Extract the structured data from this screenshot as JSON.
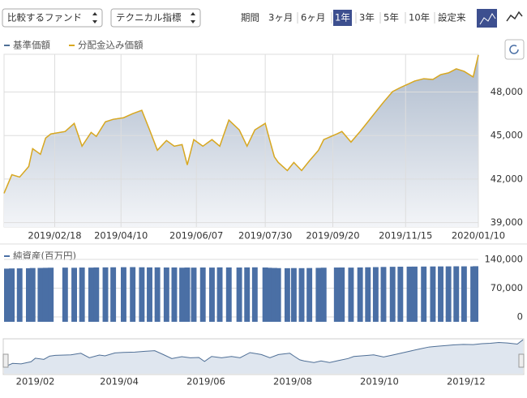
{
  "controls": {
    "compare_select": "比較するファンド",
    "indicator_select": "テクニカル指標",
    "period_label": "期間",
    "periods": [
      "3ヶ月",
      "6ヶ月",
      "1年",
      "3年",
      "5年",
      "10年",
      "設定来"
    ],
    "selected_period": "1年"
  },
  "chart_data": [
    {
      "type": "line",
      "x": [
        "2019/01/10",
        "2019/01/16",
        "2019/01/22",
        "2019/01/29",
        "2019/02/01",
        "2019/02/07",
        "2019/02/11",
        "2019/02/15",
        "2019/02/26",
        "2019/03/05",
        "2019/03/11",
        "2019/03/18",
        "2019/03/22",
        "2019/03/29",
        "2019/04/04",
        "2019/04/12",
        "2019/04/19",
        "2019/04/26",
        "2019/05/02",
        "2019/05/08",
        "2019/05/15",
        "2019/05/21",
        "2019/05/27",
        "2019/05/31",
        "2019/06/05",
        "2019/06/12",
        "2019/06/19",
        "2019/06/25",
        "2019/07/02",
        "2019/07/10",
        "2019/07/16",
        "2019/07/22",
        "2019/07/30",
        "2019/08/02",
        "2019/08/06",
        "2019/08/09",
        "2019/08/16",
        "2019/08/21",
        "2019/08/27",
        "2019/09/02",
        "2019/09/09",
        "2019/09/13",
        "2019/09/23",
        "2019/09/27",
        "2019/10/04",
        "2019/10/11",
        "2019/10/17",
        "2019/10/23",
        "2019/10/29",
        "2019/11/05",
        "2019/11/11",
        "2019/11/18",
        "2019/11/22",
        "2019/11/29",
        "2019/12/06",
        "2019/12/12",
        "2019/12/18",
        "2019/12/24",
        "2019/12/30",
        "2020/01/06",
        "2020/01/10"
      ],
      "series": [
        {
          "name": "基準価額",
          "color": "#4f6f96",
          "values": [
            41020,
            42300,
            42140,
            42870,
            44100,
            43710,
            44830,
            45110,
            45280,
            45840,
            44270,
            45220,
            44940,
            45950,
            46120,
            46230,
            46510,
            46740,
            45390,
            43990,
            44660,
            44270,
            44380,
            42980,
            44720,
            44270,
            44720,
            44270,
            46070,
            45390,
            44270,
            45390,
            45840,
            44830,
            43540,
            43150,
            42590,
            43150,
            42590,
            43260,
            43990,
            44720,
            45110,
            45280,
            44550,
            45280,
            45950,
            46630,
            47300,
            48030,
            48310,
            48590,
            48760,
            48920,
            48870,
            49200,
            49320,
            49600,
            49430,
            49040,
            50550
          ]
        },
        {
          "name": "分配金込み価額",
          "color": "#d9a820",
          "values": [
            41020,
            42300,
            42140,
            42870,
            44100,
            43710,
            44830,
            45110,
            45280,
            45840,
            44270,
            45220,
            44940,
            45950,
            46120,
            46230,
            46510,
            46740,
            45390,
            43990,
            44660,
            44270,
            44380,
            42980,
            44720,
            44270,
            44720,
            44270,
            46070,
            45390,
            44270,
            45390,
            45840,
            44830,
            43540,
            43150,
            42590,
            43150,
            42590,
            43260,
            43990,
            44720,
            45110,
            45280,
            44550,
            45280,
            45950,
            46630,
            47300,
            48030,
            48310,
            48590,
            48760,
            48920,
            48870,
            49200,
            49320,
            49600,
            49430,
            49040,
            50550
          ]
        }
      ],
      "xlim": [
        "2019/01/10",
        "2020/01/10"
      ],
      "xticks": [
        "2019/02/18",
        "2019/04/10",
        "2019/06/07",
        "2019/07/30",
        "2019/09/20",
        "2019/11/15",
        "2020/01/10"
      ],
      "ylim": [
        38700,
        50600
      ],
      "yticks": [
        {
          "value": 39000,
          "label": "39,000"
        },
        {
          "value": 42000,
          "label": "42,000"
        },
        {
          "value": 45000,
          "label": "45,000"
        },
        {
          "value": 48000,
          "label": "48,000"
        }
      ],
      "grid": true
    },
    {
      "type": "bar",
      "title": "純資産(百万円)",
      "color": "#4a6fa5",
      "x": [
        "2019/01/10",
        "2019/01/16",
        "2019/01/22",
        "2019/01/29",
        "2019/02/01",
        "2019/02/07",
        "2019/02/11",
        "2019/02/15",
        "2019/02/26",
        "2019/03/05",
        "2019/03/11",
        "2019/03/18",
        "2019/03/22",
        "2019/03/29",
        "2019/04/04",
        "2019/04/12",
        "2019/04/19",
        "2019/04/26",
        "2019/05/02",
        "2019/05/08",
        "2019/05/15",
        "2019/05/21",
        "2019/05/27",
        "2019/05/31",
        "2019/06/05",
        "2019/06/12",
        "2019/06/19",
        "2019/06/25",
        "2019/07/02",
        "2019/07/10",
        "2019/07/16",
        "2019/07/22",
        "2019/07/30",
        "2019/08/02",
        "2019/08/06",
        "2019/08/09",
        "2019/08/16",
        "2019/08/21",
        "2019/08/27",
        "2019/09/02",
        "2019/09/09",
        "2019/09/13",
        "2019/09/23",
        "2019/09/27",
        "2019/10/04",
        "2019/10/11",
        "2019/10/17",
        "2019/10/23",
        "2019/10/29",
        "2019/11/05",
        "2019/11/11",
        "2019/11/18",
        "2019/11/22",
        "2019/11/29",
        "2019/12/06",
        "2019/12/12",
        "2019/12/18",
        "2019/12/24",
        "2019/12/30",
        "2020/01/06",
        "2020/01/10"
      ],
      "values": [
        117500,
        118000,
        118200,
        118500,
        119000,
        119200,
        119500,
        119800,
        120000,
        119600,
        120200,
        120000,
        120400,
        120600,
        120800,
        121000,
        121200,
        120800,
        120500,
        120600,
        120300,
        120400,
        119800,
        120200,
        120000,
        120300,
        120100,
        120600,
        120400,
        120200,
        120500,
        120700,
        120300,
        119600,
        119200,
        118800,
        118600,
        118900,
        118700,
        119000,
        119400,
        119800,
        120200,
        120300,
        120000,
        120400,
        120800,
        121200,
        121600,
        122000,
        122200,
        122400,
        122500,
        122600,
        122800,
        122900,
        123000,
        123200,
        123100,
        122900,
        123400
      ],
      "xlim": [
        "2019/01/10",
        "2020/01/10"
      ],
      "ylim": [
        0,
        140000
      ],
      "yticks": [
        0,
        {
          "value": 70000,
          "label": "70,000"
        },
        {
          "value": 140000,
          "label": "140,000"
        }
      ],
      "grid": true
    },
    {
      "type": "navigator",
      "xlim": [
        "2019/01/10",
        "2020/01/10"
      ],
      "xticks": [
        {
          "value": "2019/02/01",
          "label": "2019/02"
        },
        {
          "value": "2019/04/01",
          "label": "2019/04"
        },
        {
          "value": "2019/06/01",
          "label": "2019/06"
        },
        {
          "value": "2019/08/01",
          "label": "2019/08"
        },
        {
          "value": "2019/10/01",
          "label": "2019/10"
        },
        {
          "value": "2019/12/01",
          "label": "2019/12"
        }
      ]
    }
  ]
}
